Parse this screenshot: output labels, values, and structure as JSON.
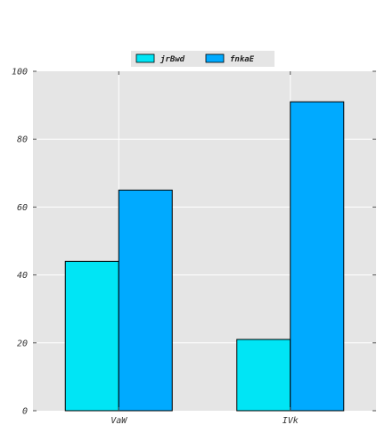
{
  "chart_data": {
    "type": "bar",
    "categories": [
      "VaW",
      "IVk"
    ],
    "series": [
      {
        "name": "jrBwd",
        "values": [
          44,
          21
        ],
        "color": "#00e5f5"
      },
      {
        "name": "fnkaE",
        "values": [
          65,
          91
        ],
        "color": "#00aaff"
      }
    ],
    "ylim": [
      0,
      100
    ],
    "yticks": [
      0,
      20,
      40,
      60,
      80,
      100
    ],
    "grid": true,
    "legend_position": "top-center",
    "background_color": "#e5e5e5",
    "grid_color": "#ffffff"
  }
}
